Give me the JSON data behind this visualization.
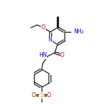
{
  "background_color": "#ffffff",
  "bond_color": "#1a1a1a",
  "atom_colors": {
    "N": "#0000cc",
    "O": "#cc0000",
    "S": "#ddaa00",
    "C": "#1a1a1a"
  },
  "figsize": [
    1.5,
    1.5
  ],
  "dpi": 100,
  "ring_r": 12,
  "benz_r": 13,
  "lw": 0.9,
  "fs": 5.5
}
